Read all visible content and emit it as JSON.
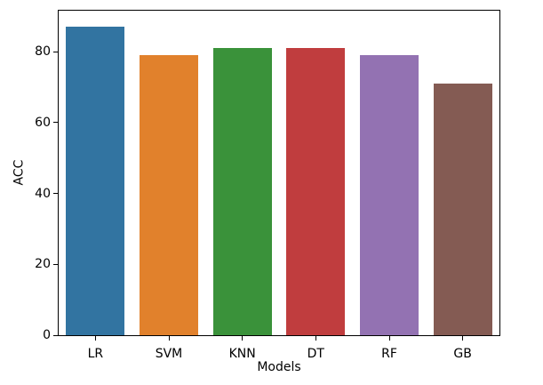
{
  "figure": {
    "background": "#ffffff",
    "spine_color": "#000000",
    "text_color": "#000000"
  },
  "chart_data": {
    "type": "bar",
    "title": "",
    "xlabel": "Models",
    "ylabel": "ACC",
    "categories": [
      "LR",
      "SVM",
      "KNN",
      "DT",
      "RF",
      "GB"
    ],
    "values": [
      87,
      79,
      81,
      81,
      79,
      71
    ],
    "bar_colors": [
      "#3274a1",
      "#e1812c",
      "#3a923a",
      "#c03d3e",
      "#9372b2",
      "#845b53"
    ],
    "yticks": [
      0,
      20,
      40,
      60,
      80
    ],
    "ylim": [
      0,
      91.6
    ],
    "bar_width_fraction": 0.8,
    "grid": false,
    "legend": "none"
  }
}
